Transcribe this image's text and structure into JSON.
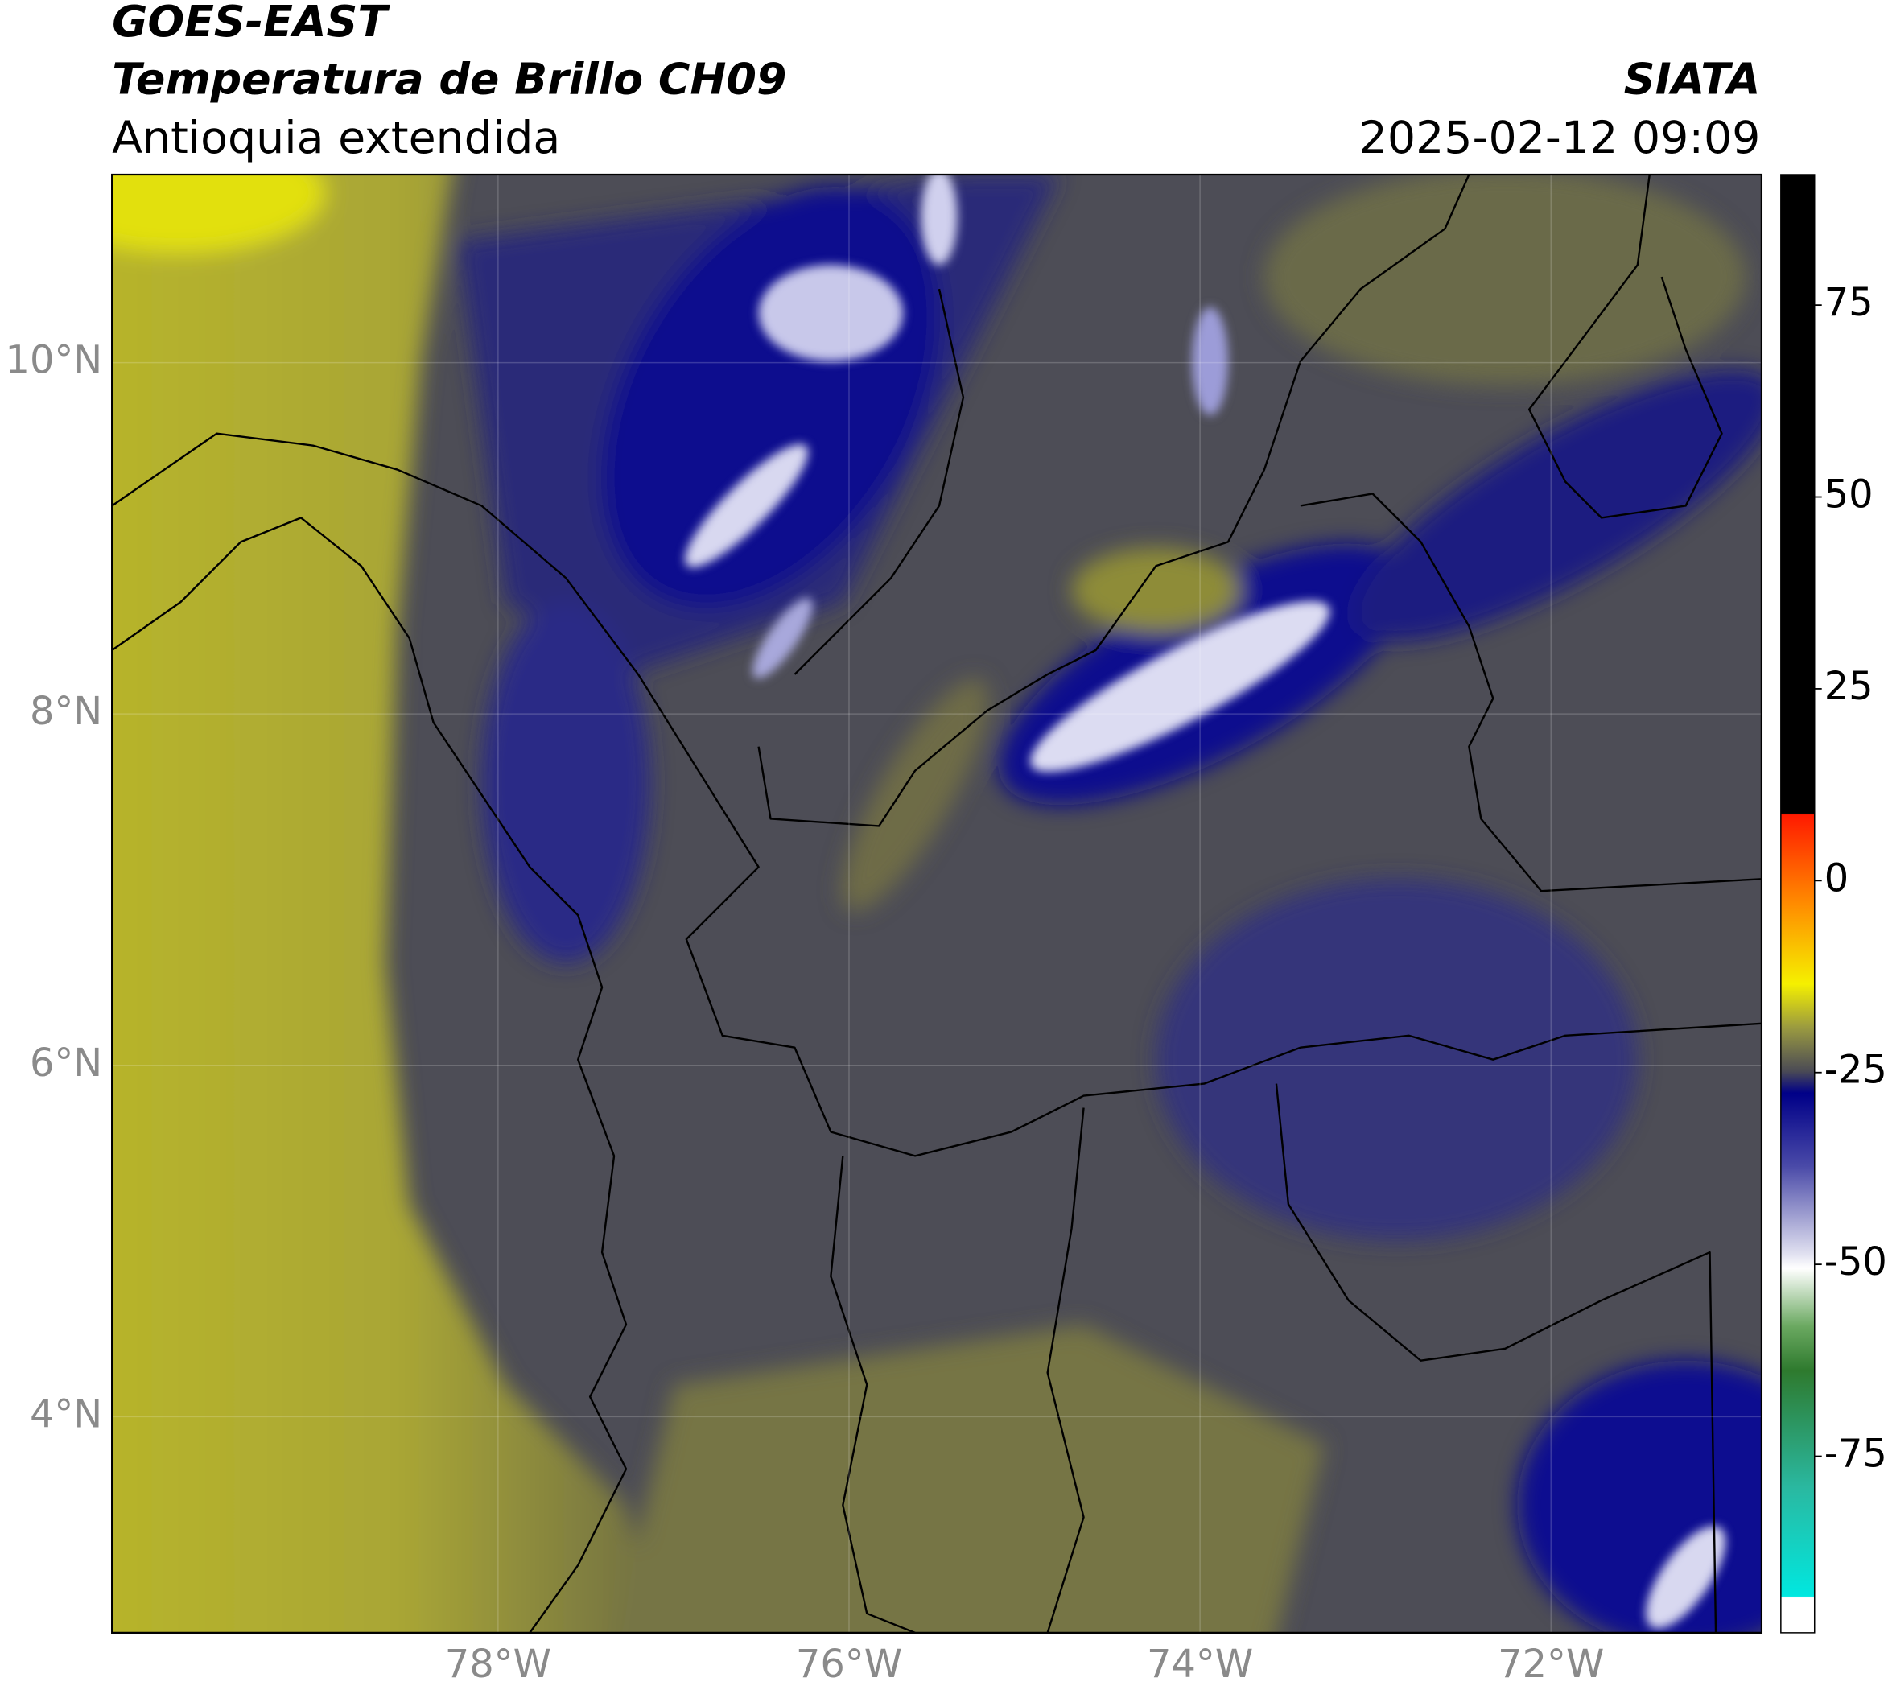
{
  "header": {
    "title": "GOES-EAST",
    "subtitle": "Temperatura de Brillo CH09",
    "region": "Antioquia extendida",
    "source": "SIATA",
    "datetime": "2025-02-12 09:09"
  },
  "map": {
    "xlim": [
      -80.2,
      -70.8
    ],
    "ylim": [
      2.77,
      11.07
    ],
    "xticks": [
      {
        "value": -78,
        "label": "78°W"
      },
      {
        "value": -76,
        "label": "76°W"
      },
      {
        "value": -74,
        "label": "74°W"
      },
      {
        "value": -72,
        "label": "72°W"
      }
    ],
    "yticks": [
      {
        "value": 10,
        "label": "10°N"
      },
      {
        "value": 8,
        "label": "8°N"
      },
      {
        "value": 6,
        "label": "6°N"
      },
      {
        "value": 4,
        "label": "4°N"
      }
    ],
    "grid": true
  },
  "colorbar": {
    "lim": [
      -98,
      92
    ],
    "ticks": [
      75,
      50,
      25,
      0,
      -25,
      -50,
      -75
    ]
  }
}
